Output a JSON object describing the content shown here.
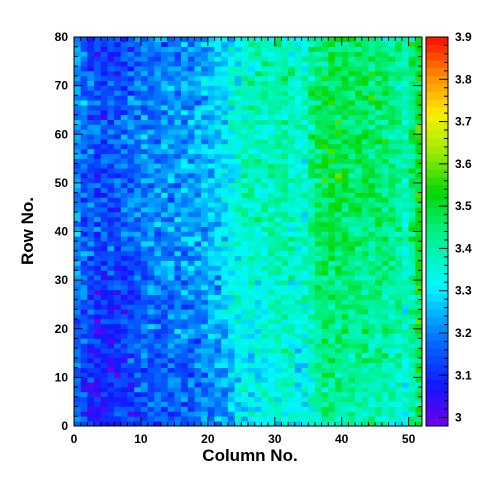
{
  "chart_data": {
    "type": "heatmap",
    "title": "",
    "xlabel": "Column No.",
    "ylabel": "Row No.",
    "x_range": [
      0,
      52
    ],
    "y_range": [
      0,
      80
    ],
    "x_ticks": [
      0,
      10,
      20,
      30,
      40,
      50
    ],
    "y_ticks": [
      0,
      10,
      20,
      30,
      40,
      50,
      60,
      70,
      80
    ],
    "z_range": [
      2.98,
      3.9
    ],
    "z_ticks": [
      3,
      3.1,
      3.2,
      3.3,
      3.4,
      3.5,
      3.6,
      3.7,
      3.8,
      3.9
    ],
    "n_columns": 52,
    "n_rows": 80,
    "colormap": "rainbow",
    "column_profile": {
      "columns": [
        0,
        2,
        4,
        6,
        8,
        10,
        12,
        14,
        16,
        18,
        20,
        22,
        24,
        26,
        28,
        30,
        32,
        34,
        36,
        38,
        40,
        42,
        44,
        46,
        48,
        50,
        51
      ],
      "mean_value": [
        3.22,
        3.14,
        3.12,
        3.13,
        3.15,
        3.17,
        3.19,
        3.2,
        3.21,
        3.22,
        3.24,
        3.27,
        3.33,
        3.36,
        3.37,
        3.38,
        3.38,
        3.33,
        3.44,
        3.47,
        3.46,
        3.45,
        3.44,
        3.44,
        3.42,
        3.36,
        3.5
      ]
    },
    "row_trend": {
      "rows": [
        0,
        20,
        40,
        60,
        80
      ],
      "offset": [
        -0.05,
        -0.02,
        0.01,
        0.02,
        0.0
      ]
    }
  }
}
